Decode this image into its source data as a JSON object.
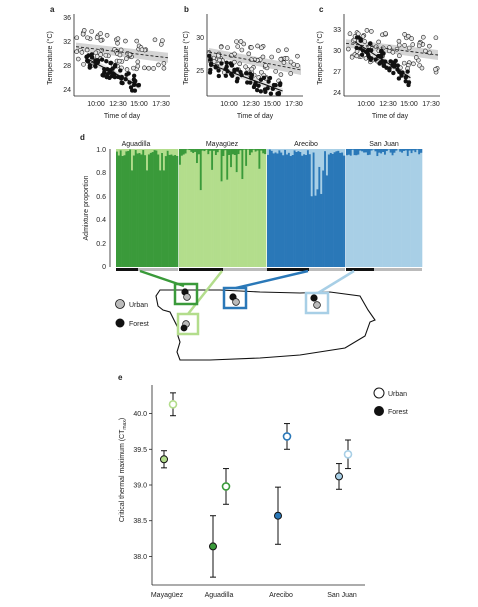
{
  "panels": {
    "a": {
      "letter": "a",
      "ylabel": "Temperature (°C)",
      "xlabel": "Time of day",
      "yticks": [
        "24",
        "28",
        "32",
        "36"
      ],
      "xticks": [
        "10:00",
        "12:30",
        "15:00",
        "17:30"
      ]
    },
    "b": {
      "letter": "b",
      "ylabel": "Temperature (°C)",
      "xlabel": "Time of day",
      "yticks": [
        "25",
        "30"
      ],
      "xticks": [
        "10:00",
        "12:30",
        "15:00",
        "17:30"
      ]
    },
    "c": {
      "letter": "c",
      "ylabel": "Temperature (°C)",
      "xlabel": "Time of day",
      "yticks": [
        "24",
        "27",
        "30",
        "33"
      ],
      "xticks": [
        "10:00",
        "12:30",
        "15:00",
        "17:30"
      ]
    }
  },
  "admixture": {
    "letter": "d",
    "ylabel": "Admixture proportion",
    "yticks": [
      "0",
      "0.2",
      "0.4",
      "0.6",
      "0.8",
      "1.0"
    ],
    "populations": [
      "Aguadilla",
      "Mayagüez",
      "Arecibo",
      "San Juan"
    ],
    "colors": [
      "#3a9a3a",
      "#b3dd8c",
      "#2a78b8",
      "#a8cfe6"
    ]
  },
  "map": {
    "legend_urban": "Urban",
    "legend_forest": "Forest"
  },
  "ctmax": {
    "letter": "e",
    "ylabel": "Critical thermal maximum (CT",
    "ylabel_sub": "max",
    "ylabel_end": ")",
    "yticks": [
      "38.0",
      "38.5",
      "39.0",
      "39.5",
      "40.0"
    ],
    "legend_urban": "Urban",
    "legend_forest": "Forest"
  },
  "chart_data": [
    {
      "type": "scatter",
      "panel": "a",
      "xlabel": "Time of day",
      "ylabel": "Temperature (°C)",
      "ylim": [
        23,
        37
      ],
      "series": [
        {
          "name": "Urban",
          "trend": [
            [
              9,
              31.5
            ],
            [
              19,
              29.5
            ]
          ]
        },
        {
          "name": "Forest",
          "trend": [
            [
              10,
              29.5
            ],
            [
              16,
              24.3
            ]
          ]
        }
      ]
    },
    {
      "type": "scatter",
      "panel": "b",
      "xlabel": "Time of day",
      "ylabel": "Temperature (°C)",
      "ylim": [
        21,
        34
      ],
      "series": [
        {
          "name": "Urban",
          "trend": [
            [
              9,
              28
            ],
            [
              19,
              25
            ]
          ]
        },
        {
          "name": "Forest",
          "trend": [
            [
              9,
              26
            ],
            [
              17,
              21.5
            ]
          ]
        }
      ]
    },
    {
      "type": "scatter",
      "panel": "c",
      "xlabel": "Time of day",
      "ylabel": "Temperature (°C)",
      "ylim": [
        23,
        35
      ],
      "series": [
        {
          "name": "Urban",
          "trend": [
            [
              9,
              30.8
            ],
            [
              19,
              29
            ]
          ]
        },
        {
          "name": "Forest",
          "trend": [
            [
              10,
              31
            ],
            [
              16,
              25.5
            ]
          ]
        }
      ]
    },
    {
      "type": "bar",
      "panel": "d",
      "ylabel": "Admixture proportion",
      "categories": [
        "Aguadilla",
        "Mayagüez",
        "Arecibo",
        "San Juan"
      ],
      "ylim": [
        0,
        1
      ]
    },
    {
      "type": "scatter",
      "panel": "e",
      "categories": [
        "Mayagüez",
        "Aguadilla",
        "Arecibo",
        "San Juan"
      ],
      "ylim": [
        37.6,
        40.4
      ],
      "series": [
        {
          "name": "Urban",
          "values": [
            40.13,
            38.98,
            39.68,
            39.43
          ],
          "errors": [
            0.16,
            0.25,
            0.18,
            0.2
          ]
        },
        {
          "name": "Forest",
          "values": [
            39.36,
            38.14,
            38.57,
            39.12
          ],
          "errors": [
            0.12,
            0.43,
            0.4,
            0.18
          ]
        }
      ],
      "colors": [
        "#b3dd8c",
        "#3a9a3a",
        "#2a78b8",
        "#a8cfe6"
      ]
    }
  ]
}
